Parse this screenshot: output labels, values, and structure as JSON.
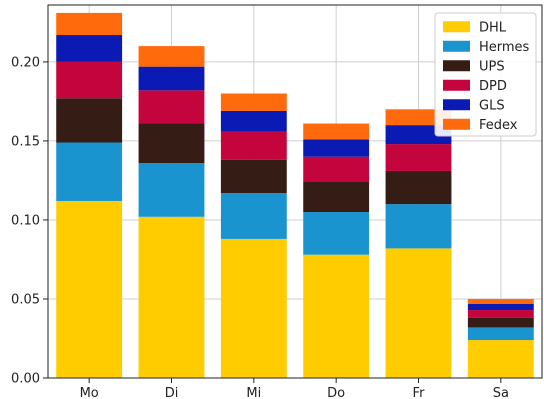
{
  "chart_data": {
    "type": "bar",
    "stacked": true,
    "title": "",
    "xlabel": "",
    "ylabel": "",
    "categories": [
      "Mo",
      "Di",
      "Mi",
      "Do",
      "Fr",
      "Sa"
    ],
    "ylim": [
      0,
      0.236
    ],
    "yticks": [
      "0.00",
      "0.05",
      "0.10",
      "0.15",
      "0.20"
    ],
    "grid": true,
    "legend_position": "top-right",
    "series": [
      {
        "name": "DHL",
        "color": "#ffcc00",
        "values": [
          0.112,
          0.102,
          0.088,
          0.078,
          0.082,
          0.024
        ]
      },
      {
        "name": "Hermes",
        "color": "#1a94cf",
        "values": [
          0.037,
          0.034,
          0.029,
          0.027,
          0.028,
          0.008
        ]
      },
      {
        "name": "UPS",
        "color": "#351c15",
        "values": [
          0.028,
          0.025,
          0.021,
          0.019,
          0.021,
          0.006
        ]
      },
      {
        "name": "DPD",
        "color": "#c4043c",
        "values": [
          0.023,
          0.021,
          0.018,
          0.016,
          0.017,
          0.005
        ]
      },
      {
        "name": "GLS",
        "color": "#0a1ab3",
        "values": [
          0.017,
          0.015,
          0.013,
          0.011,
          0.012,
          0.004
        ]
      },
      {
        "name": "Fedex",
        "color": "#ff6a0d",
        "values": [
          0.014,
          0.013,
          0.011,
          0.01,
          0.01,
          0.003
        ]
      }
    ]
  }
}
